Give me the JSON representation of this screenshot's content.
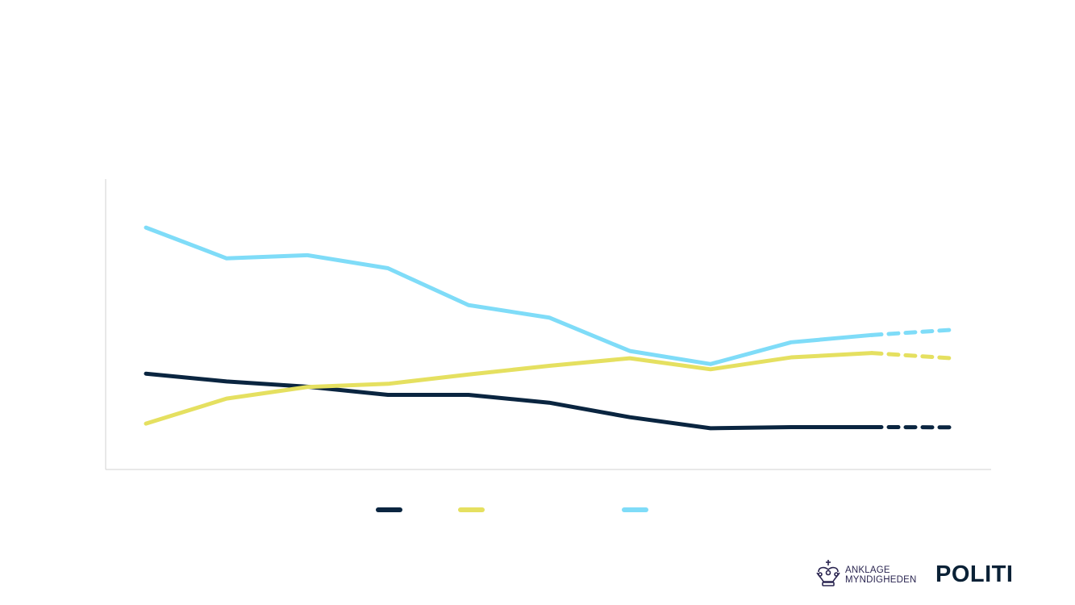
{
  "chart_data": {
    "type": "line",
    "x": [
      1,
      2,
      3,
      4,
      5,
      6,
      7,
      8,
      9,
      10,
      11
    ],
    "ylim": [
      0,
      100
    ],
    "grid": false,
    "series": [
      {
        "color": "#0a2540",
        "values": [
          33,
          30.3,
          28.5,
          25.7,
          25.7,
          23,
          18,
          14.2,
          14.6,
          14.6,
          14.5
        ],
        "projected_from_index": 9
      },
      {
        "color": "#e5e060",
        "values": [
          15.8,
          24.4,
          28.4,
          29.5,
          32.7,
          35.7,
          38.3,
          34.5,
          38.6,
          40.1,
          38.3
        ],
        "projected_from_index": 9
      },
      {
        "color": "#7fdcf8",
        "values": [
          83.3,
          72.7,
          73.8,
          69.3,
          56.6,
          52.3,
          40.8,
          36.3,
          43.8,
          46.3,
          48.1
        ],
        "projected_from_index": 9
      }
    ],
    "legend": {
      "placement": "bottom-center"
    }
  },
  "branding": {
    "logo_line1": "ANKLAGE",
    "logo_line2": "MYNDIGHEDEN",
    "wordmark": "POLITI",
    "crown_icon": "crown-icon"
  }
}
